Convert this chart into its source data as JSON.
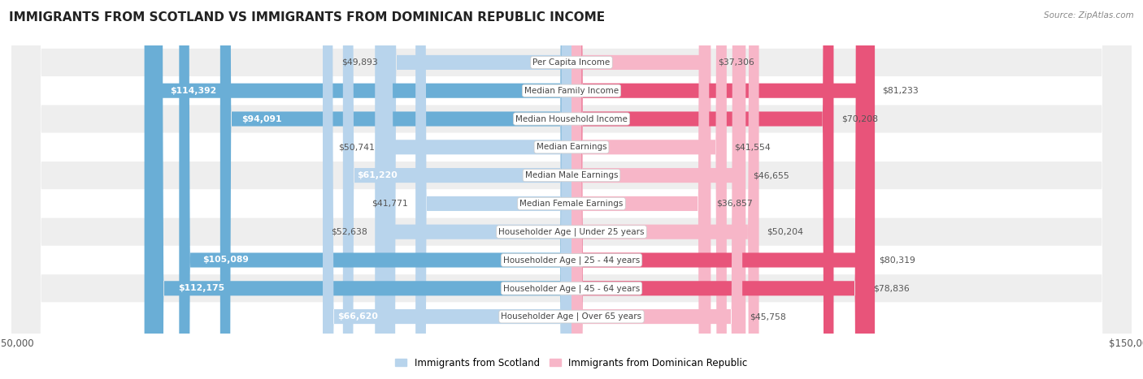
{
  "title": "IMMIGRANTS FROM SCOTLAND VS IMMIGRANTS FROM DOMINICAN REPUBLIC INCOME",
  "source": "Source: ZipAtlas.com",
  "categories": [
    "Per Capita Income",
    "Median Family Income",
    "Median Household Income",
    "Median Earnings",
    "Median Male Earnings",
    "Median Female Earnings",
    "Householder Age | Under 25 years",
    "Householder Age | 25 - 44 years",
    "Householder Age | 45 - 64 years",
    "Householder Age | Over 65 years"
  ],
  "scotland_values": [
    49893,
    114392,
    94091,
    50741,
    61220,
    41771,
    52638,
    105089,
    112175,
    66620
  ],
  "dominican_values": [
    37306,
    81233,
    70208,
    41554,
    46655,
    36857,
    50204,
    80319,
    78836,
    45758
  ],
  "scotland_labels": [
    "$49,893",
    "$114,392",
    "$94,091",
    "$50,741",
    "$61,220",
    "$41,771",
    "$52,638",
    "$105,089",
    "$112,175",
    "$66,620"
  ],
  "dominican_labels": [
    "$37,306",
    "$81,233",
    "$70,208",
    "$41,554",
    "$46,655",
    "$36,857",
    "$50,204",
    "$80,319",
    "$78,836",
    "$45,758"
  ],
  "scotland_color_light": "#b8d4ec",
  "scotland_color_dark": "#6aaed6",
  "dominican_color_light": "#f7b6c8",
  "dominican_color_dark": "#e8547a",
  "max_value": 150000,
  "bar_height": 0.52,
  "background_color": "#ffffff",
  "row_bg_color": "#eeeeee",
  "inner_label_threshold": 80000,
  "legend_scotland": "Immigrants from Scotland",
  "legend_dominican": "Immigrants from Dominican Republic"
}
